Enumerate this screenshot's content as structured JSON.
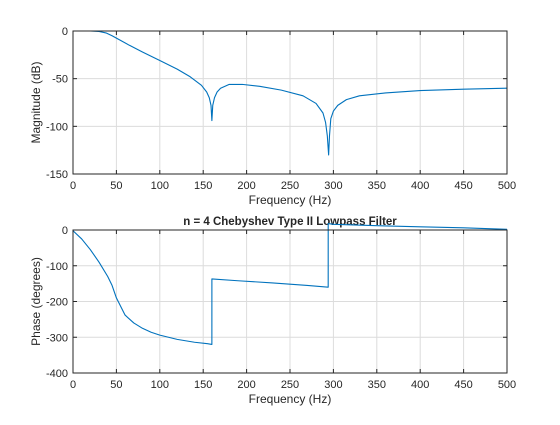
{
  "chart_data": [
    {
      "type": "line",
      "title": "",
      "xlabel": "Frequency (Hz)",
      "ylabel": "Magnitude (dB)",
      "xlim": [
        0,
        500
      ],
      "ylim": [
        -150,
        0
      ],
      "xticks": [
        0,
        50,
        100,
        150,
        200,
        250,
        300,
        350,
        400,
        450,
        500
      ],
      "yticks": [
        -150,
        -100,
        -50,
        0
      ],
      "grid": true,
      "series": [
        {
          "color": "#0072bd",
          "x": [
            0,
            10,
            20,
            30,
            38,
            45,
            55,
            65,
            80,
            100,
            120,
            135,
            148,
            154,
            157,
            159,
            160,
            161,
            163,
            166,
            170,
            180,
            195,
            215,
            240,
            265,
            280,
            288,
            291,
            293,
            294.5,
            295.5,
            297,
            300,
            305,
            315,
            330,
            360,
            400,
            450,
            500
          ],
          "y": [
            0,
            0,
            0,
            -0.5,
            -2,
            -5,
            -10,
            -15,
            -22,
            -31,
            -40,
            -48,
            -57,
            -64,
            -70,
            -78,
            -94,
            -78,
            -70,
            -64,
            -60,
            -56,
            -56,
            -58,
            -62,
            -68,
            -76,
            -86,
            -96,
            -110,
            -130,
            -110,
            -92,
            -84,
            -78,
            -72,
            -68,
            -65,
            -62.5,
            -61,
            -60
          ]
        }
      ]
    },
    {
      "type": "line",
      "title": "n = 4 Chebyshev Type II Lowpass Filter",
      "xlabel": "Frequency (Hz)",
      "ylabel": "Phase (degrees)",
      "xlim": [
        0,
        500
      ],
      "ylim": [
        -400,
        0
      ],
      "xticks": [
        0,
        50,
        100,
        150,
        200,
        250,
        300,
        350,
        400,
        450,
        500
      ],
      "yticks": [
        -400,
        -300,
        -200,
        -100,
        0
      ],
      "grid": true,
      "series": [
        {
          "color": "#0072bd",
          "x": [
            0,
            10,
            20,
            30,
            40,
            45,
            50,
            60,
            70,
            80,
            90,
            100,
            120,
            140,
            155,
            160,
            160.01,
            190,
            230,
            270,
            294,
            294.01,
            300,
            350,
            400,
            450,
            500
          ],
          "y": [
            -2,
            -25,
            -55,
            -90,
            -130,
            -155,
            -190,
            -238,
            -260,
            -275,
            -286,
            -294,
            -306,
            -314,
            -318,
            -320,
            -137,
            -142,
            -148,
            -155,
            -160,
            18,
            16,
            12,
            9,
            6,
            2
          ]
        }
      ]
    }
  ]
}
